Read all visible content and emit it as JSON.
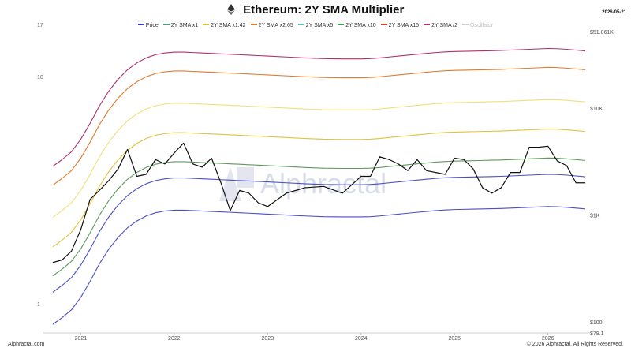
{
  "header": {
    "title": "Ethereum: 2Y SMA Multiplier",
    "date": "2026-05-21"
  },
  "footer": {
    "brand": "Alphractal.com",
    "copyright": "© 2026 Alphractal. All Rights Reserved."
  },
  "watermark": "Alphractal",
  "colors": {
    "price": "#111111",
    "sma1": "#4b4fc4",
    "sma142": "#5e9a5e",
    "sma265": "#e2c23a",
    "sma5": "#f0e07a",
    "sma10": "#e07a2e",
    "sma15": "#d0442e",
    "smahalf": "#b0306e",
    "osc": "#bbbbbb"
  },
  "chart_data": {
    "type": "line",
    "title": "Ethereum: 2Y SMA Multiplier",
    "y_scale": "log",
    "ylim": [
      79.1,
      51861
    ],
    "right_ticks": [
      "$51.861K",
      "$10K",
      "$1K",
      "$100",
      "$79.1"
    ],
    "left_ticks": [
      "17",
      "10",
      "1"
    ],
    "x_ticks": [
      "2021",
      "2022",
      "2023",
      "2024",
      "2025",
      "2026"
    ],
    "legend": [
      {
        "name": "Price",
        "color": "#3b3fbf",
        "active": true
      },
      {
        "name": "2Y SMA x1",
        "color": "#4fa07a",
        "active": true
      },
      {
        "name": "2Y SMA x1.42",
        "color": "#e2c23a",
        "active": true
      },
      {
        "name": "2Y SMA x2.65",
        "color": "#e07a2e",
        "active": true
      },
      {
        "name": "2Y SMA x5",
        "color": "#5ec0c0",
        "active": true
      },
      {
        "name": "2Y SMA x10",
        "color": "#3a9a5a",
        "active": true
      },
      {
        "name": "2Y SMA x15",
        "color": "#d0442e",
        "active": true
      },
      {
        "name": "2Y SMA /2",
        "color": "#b0306e",
        "active": true
      },
      {
        "name": "Oscillator",
        "color": "#bbbbbb",
        "active": false
      }
    ],
    "dates": [
      2020.7,
      2020.8,
      2020.9,
      2021.0,
      2021.1,
      2021.2,
      2021.3,
      2021.4,
      2021.5,
      2021.6,
      2021.7,
      2021.8,
      2021.9,
      2022.0,
      2022.1,
      2022.2,
      2022.3,
      2022.4,
      2022.5,
      2022.6,
      2022.7,
      2022.8,
      2022.9,
      2023.0,
      2023.2,
      2023.4,
      2023.6,
      2023.8,
      2024.0,
      2024.1,
      2024.2,
      2024.3,
      2024.4,
      2024.5,
      2024.6,
      2024.7,
      2024.8,
      2024.9,
      2025.0,
      2025.1,
      2025.2,
      2025.3,
      2025.4,
      2025.5,
      2025.6,
      2025.7,
      2025.8,
      2025.9,
      2026.0,
      2026.1,
      2026.2,
      2026.3,
      2026.4
    ],
    "series": [
      {
        "name": "2Y SMA /2",
        "key": "sma_half",
        "color": "#4b4fc4",
        "values": [
          95,
          110,
          130,
          170,
          240,
          350,
          480,
          620,
          760,
          880,
          980,
          1050,
          1090,
          1110,
          1110,
          1100,
          1090,
          1080,
          1070,
          1060,
          1050,
          1040,
          1030,
          1020,
          1000,
          980,
          965,
          960,
          960,
          965,
          980,
          1000,
          1020,
          1040,
          1060,
          1080,
          1100,
          1115,
          1125,
          1130,
          1135,
          1140,
          1145,
          1150,
          1160,
          1170,
          1180,
          1190,
          1200,
          1195,
          1180,
          1160,
          1140
        ]
      },
      {
        "name": "2Y SMA x1",
        "key": "sma1",
        "color": "#4b4fc4",
        "values": [
          190,
          220,
          260,
          340,
          480,
          700,
          960,
          1240,
          1520,
          1760,
          1960,
          2100,
          2180,
          2220,
          2220,
          2200,
          2180,
          2160,
          2140,
          2120,
          2100,
          2080,
          2060,
          2040,
          2000,
          1960,
          1930,
          1920,
          1920,
          1930,
          1960,
          2000,
          2040,
          2080,
          2120,
          2160,
          2200,
          2230,
          2250,
          2260,
          2270,
          2280,
          2290,
          2300,
          2320,
          2340,
          2360,
          2380,
          2400,
          2390,
          2360,
          2320,
          2280
        ]
      },
      {
        "name": "2Y SMA x1.42",
        "key": "sma142",
        "color": "#5e9a5e",
        "values": [
          270,
          312,
          369,
          483,
          682,
          994,
          1363,
          1761,
          2158,
          2499,
          2783,
          2982,
          3096,
          3152,
          3152,
          3124,
          3096,
          3067,
          3039,
          3010,
          2982,
          2954,
          2925,
          2897,
          2840,
          2783,
          2741,
          2726,
          2726,
          2741,
          2783,
          2840,
          2897,
          2954,
          3010,
          3067,
          3124,
          3167,
          3195,
          3209,
          3223,
          3238,
          3252,
          3266,
          3294,
          3323,
          3351,
          3380,
          3408,
          3394,
          3351,
          3294,
          3238
        ]
      },
      {
        "name": "2Y SMA x2.65",
        "key": "sma265",
        "color": "#e2c23a",
        "values": [
          504,
          583,
          689,
          901,
          1272,
          1855,
          2544,
          3286,
          4028,
          4664,
          5194,
          5565,
          5777,
          5883,
          5883,
          5830,
          5777,
          5724,
          5671,
          5618,
          5565,
          5512,
          5459,
          5406,
          5300,
          5194,
          5115,
          5088,
          5088,
          5115,
          5194,
          5300,
          5406,
          5512,
          5618,
          5724,
          5830,
          5910,
          5963,
          5989,
          6016,
          6042,
          6069,
          6095,
          6148,
          6201,
          6254,
          6307,
          6360,
          6334,
          6254,
          6148,
          6042
        ]
      },
      {
        "name": "2Y SMA x5",
        "key": "sma5",
        "color": "#f0e07a",
        "values": [
          950,
          1100,
          1300,
          1700,
          2400,
          3500,
          4800,
          6200,
          7600,
          8800,
          9800,
          10500,
          10900,
          11100,
          11100,
          11000,
          10900,
          10800,
          10700,
          10600,
          10500,
          10400,
          10300,
          10200,
          10000,
          9800,
          9650,
          9600,
          9600,
          9650,
          9800,
          10000,
          10200,
          10400,
          10600,
          10800,
          11000,
          11150,
          11250,
          11300,
          11350,
          11400,
          11450,
          11500,
          11600,
          11700,
          11800,
          11900,
          12000,
          11950,
          11800,
          11600,
          11400
        ]
      },
      {
        "name": "2Y SMA x10",
        "key": "sma10",
        "color": "#e07a2e",
        "values": [
          1900,
          2200,
          2600,
          3400,
          4800,
          7000,
          9600,
          12400,
          15200,
          17600,
          19600,
          21000,
          21800,
          22200,
          22200,
          22000,
          21800,
          21600,
          21400,
          21200,
          21000,
          20800,
          20600,
          20400,
          20000,
          19600,
          19300,
          19200,
          19200,
          19300,
          19600,
          20000,
          20400,
          20800,
          21200,
          21600,
          22000,
          22300,
          22500,
          22600,
          22700,
          22800,
          22900,
          23000,
          23200,
          23400,
          23600,
          23800,
          24000,
          23900,
          23600,
          23200,
          22800
        ]
      },
      {
        "name": "2Y SMA x15",
        "key": "sma15",
        "color": "#b0306e",
        "values": [
          2850,
          3300,
          3900,
          5100,
          7200,
          10500,
          14400,
          18600,
          22800,
          26400,
          29400,
          31500,
          32700,
          33300,
          33300,
          33000,
          32700,
          32400,
          32100,
          31800,
          31500,
          31200,
          30900,
          30600,
          30000,
          29400,
          28950,
          28800,
          28800,
          28950,
          29400,
          30000,
          30600,
          31200,
          31800,
          32400,
          33000,
          33450,
          33750,
          33900,
          34050,
          34200,
          34350,
          34500,
          34800,
          35100,
          35400,
          35700,
          36000,
          35850,
          35400,
          34800,
          34200
        ]
      },
      {
        "name": "Price",
        "key": "price",
        "color": "#111111",
        "values": [
          360,
          380,
          460,
          730,
          1400,
          1700,
          2100,
          2700,
          4100,
          2300,
          2400,
          3300,
          3000,
          3800,
          4700,
          3000,
          2800,
          3400,
          2000,
          1100,
          1700,
          1600,
          1300,
          1200,
          1600,
          1800,
          1850,
          1600,
          2300,
          2300,
          3500,
          3300,
          3000,
          2600,
          3300,
          2600,
          2500,
          2400,
          3400,
          3300,
          2700,
          1800,
          1600,
          1800,
          2500,
          2500,
          4300,
          4300,
          4400,
          3200,
          2900,
          2000,
          2000
        ]
      }
    ]
  }
}
